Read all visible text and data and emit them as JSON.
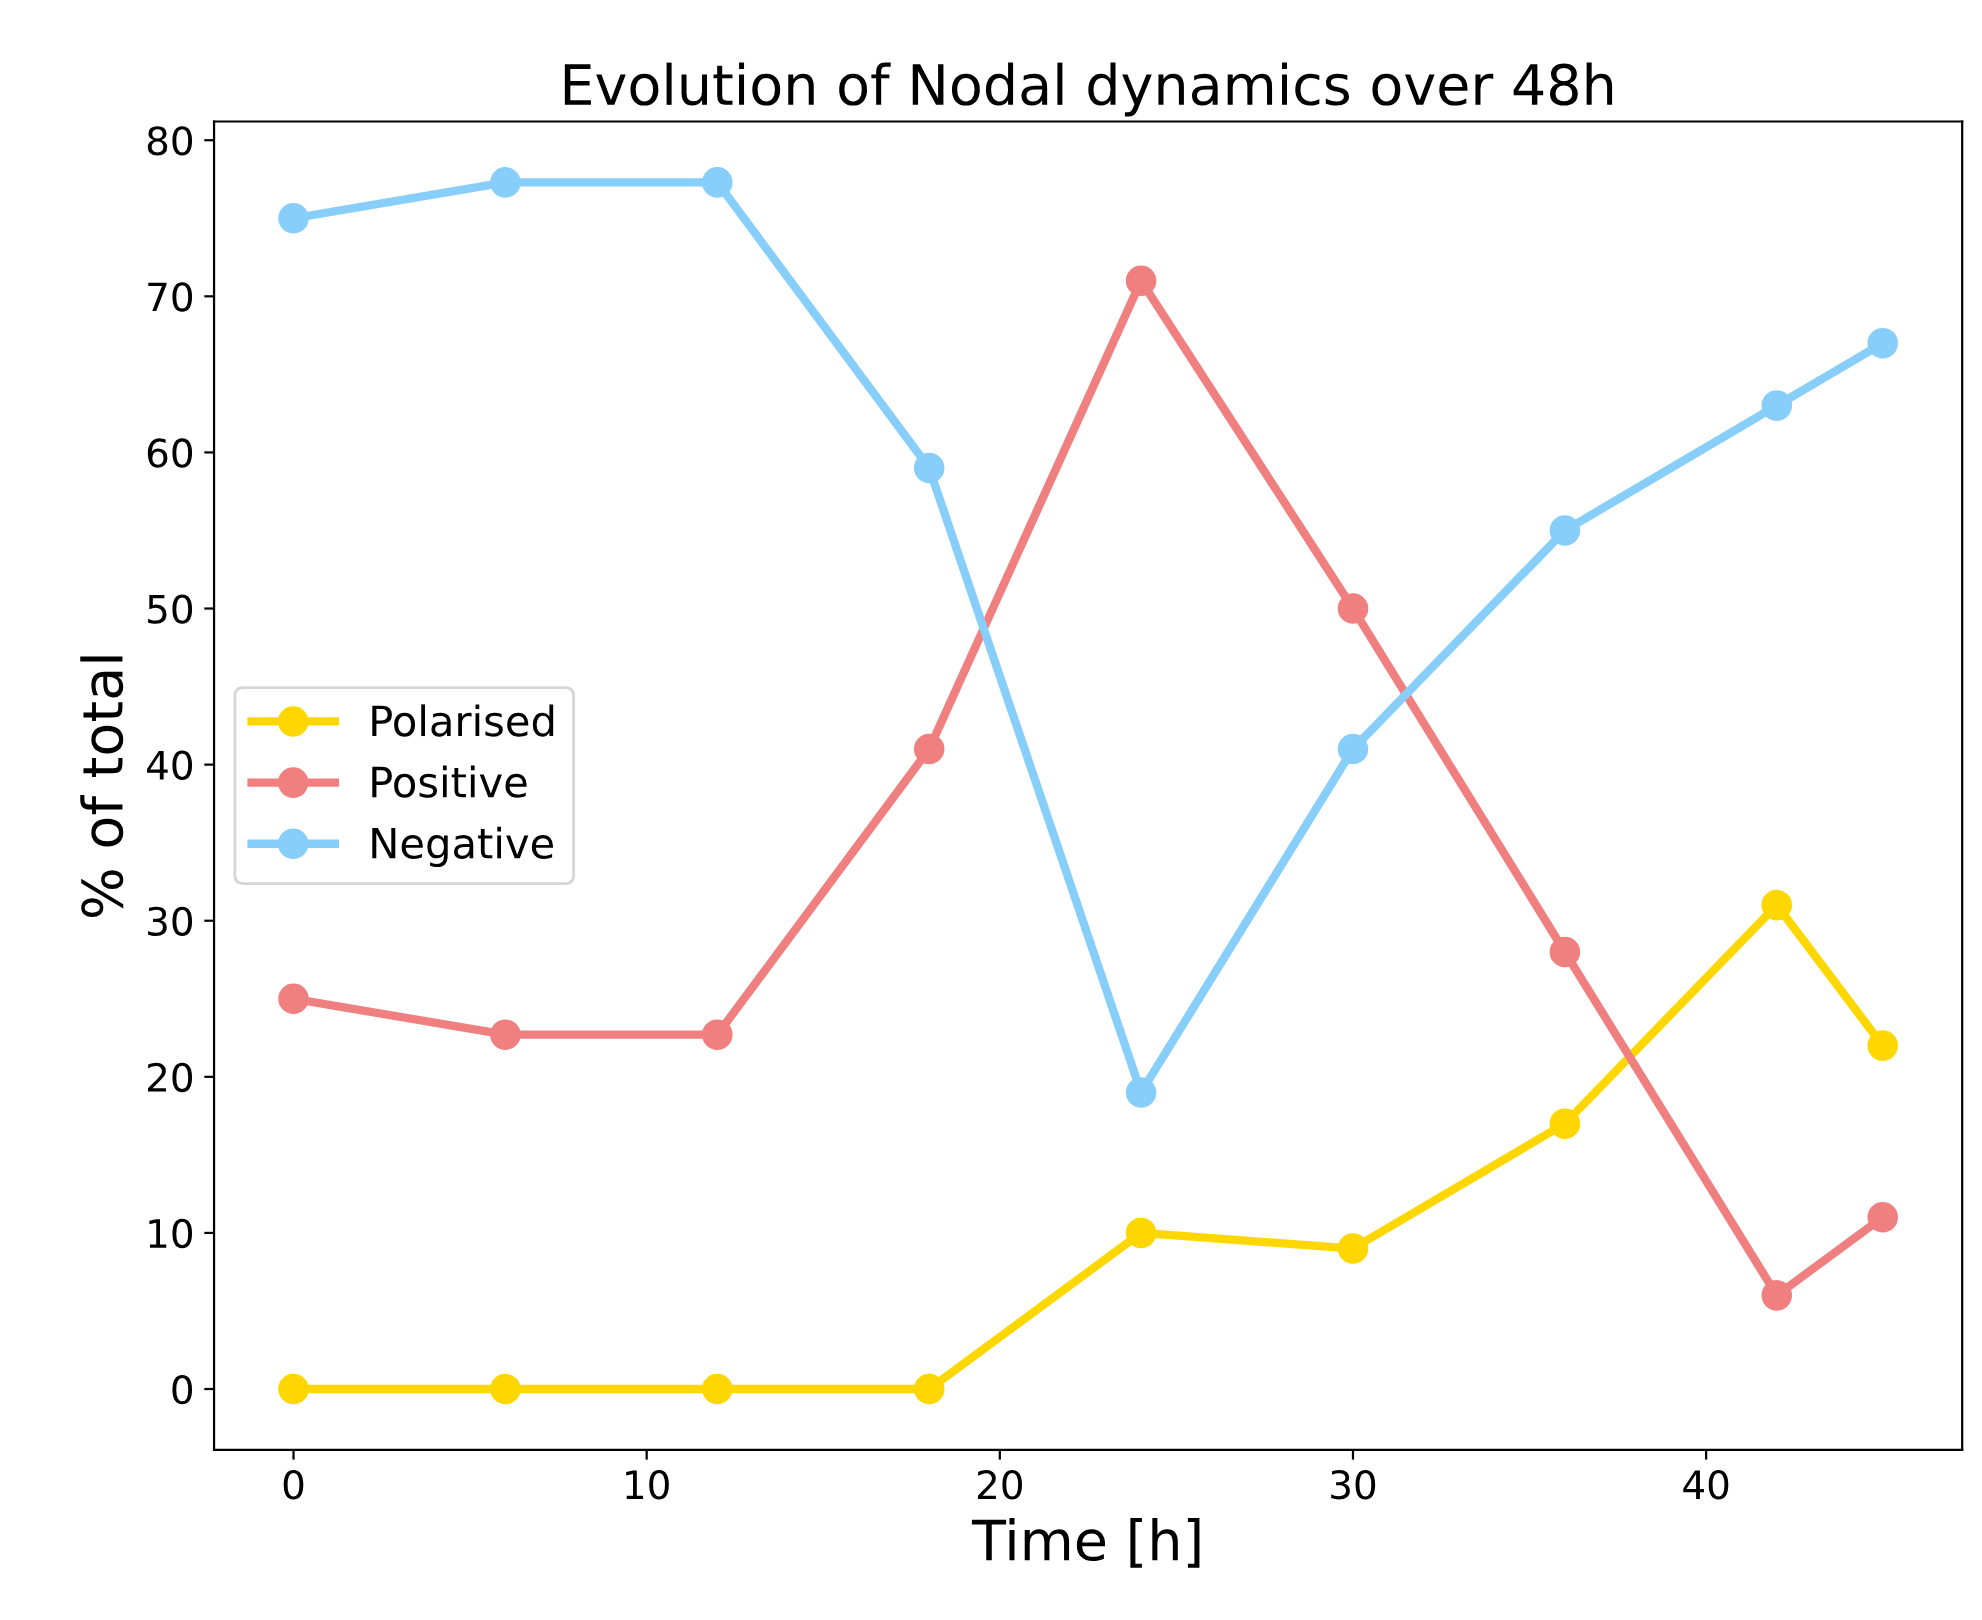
{
  "chart_data": {
    "type": "line",
    "title": "Evolution of Nodal dynamics over 48h",
    "xlabel": "Time [h]",
    "ylabel": "% of total",
    "x": [
      0,
      6,
      12,
      18,
      24,
      30,
      36,
      42,
      45
    ],
    "series": [
      {
        "name": "Polarised",
        "color": "#ffd700",
        "values": [
          0,
          0,
          0,
          0,
          10,
          9,
          17,
          31,
          22
        ]
      },
      {
        "name": "Positive",
        "color": "#f08080",
        "values": [
          25,
          22.7,
          22.7,
          41,
          71,
          50,
          28,
          6,
          11
        ]
      },
      {
        "name": "Negative",
        "color": "#87cefa",
        "values": [
          75,
          77.3,
          77.3,
          59,
          19,
          41,
          55,
          63,
          67
        ]
      }
    ],
    "xlim": [
      -2.25,
      47.25
    ],
    "ylim": [
      -3.9,
      81.2
    ],
    "xticks": [
      0,
      10,
      20,
      30,
      40
    ],
    "yticks": [
      0,
      10,
      20,
      30,
      40,
      50,
      60,
      70,
      80
    ],
    "marker": "circle",
    "line_style": "solid",
    "legend": "center left",
    "grid": false
  }
}
